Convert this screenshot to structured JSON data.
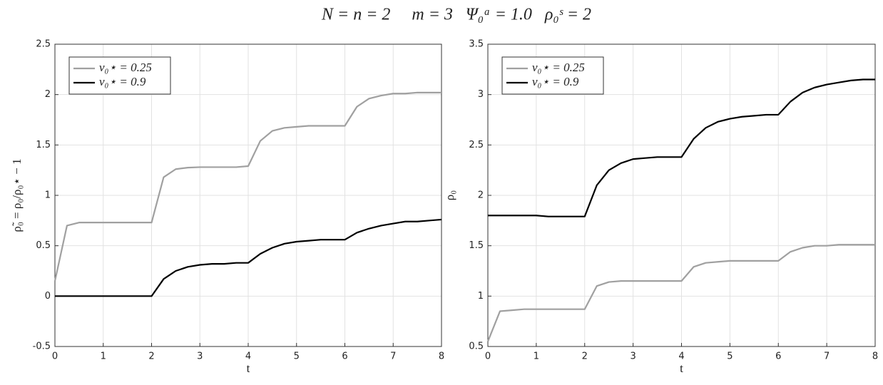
{
  "title": "N = n = 2     m = 3   Ψ₀ᵃ = 1.0   ρ₀ˢ = 2",
  "chart_data": [
    {
      "type": "line",
      "xlabel": "t",
      "ylabel": "ρ̃₀ = ρ₀/ρ₀⋆ − 1",
      "x": [
        0,
        0.25,
        0.5,
        0.75,
        1,
        1.25,
        1.5,
        1.75,
        2,
        2.25,
        2.5,
        2.75,
        3,
        3.25,
        3.5,
        3.75,
        4,
        4.25,
        4.5,
        4.75,
        5,
        5.25,
        5.5,
        5.75,
        6,
        6.25,
        6.5,
        6.75,
        7,
        7.25,
        7.5,
        7.75,
        8
      ],
      "series": [
        {
          "name": "ν₀⋆ = 0.25",
          "color": "#a0a0a0",
          "values": [
            0.15,
            0.7,
            0.73,
            0.73,
            0.73,
            0.73,
            0.73,
            0.73,
            0.73,
            1.18,
            1.26,
            1.275,
            1.28,
            1.28,
            1.28,
            1.28,
            1.29,
            1.54,
            1.64,
            1.67,
            1.68,
            1.69,
            1.69,
            1.69,
            1.69,
            1.88,
            1.96,
            1.99,
            2.01,
            2.01,
            2.02,
            2.02,
            2.02
          ]
        },
        {
          "name": "ν₀⋆ = 0.9",
          "color": "#000000",
          "values": [
            0,
            0,
            0,
            0,
            0,
            0,
            0,
            0,
            0,
            0.17,
            0.25,
            0.29,
            0.31,
            0.32,
            0.32,
            0.33,
            0.33,
            0.42,
            0.48,
            0.52,
            0.54,
            0.55,
            0.56,
            0.56,
            0.56,
            0.63,
            0.67,
            0.7,
            0.72,
            0.74,
            0.74,
            0.75,
            0.76
          ]
        }
      ],
      "xlim": [
        0,
        8
      ],
      "xticks": [
        0,
        1,
        2,
        3,
        4,
        5,
        6,
        7,
        8
      ],
      "ylim": [
        -0.5,
        2.5
      ],
      "yticks": [
        -0.5,
        0,
        0.5,
        1,
        1.5,
        2,
        2.5
      ],
      "grid": true,
      "legend": "upper-left"
    },
    {
      "type": "line",
      "xlabel": "t",
      "ylabel": "ρ₀",
      "x": [
        0,
        0.25,
        0.5,
        0.75,
        1,
        1.25,
        1.5,
        1.75,
        2,
        2.25,
        2.5,
        2.75,
        3,
        3.25,
        3.5,
        3.75,
        4,
        4.25,
        4.5,
        4.75,
        5,
        5.25,
        5.5,
        5.75,
        6,
        6.25,
        6.5,
        6.75,
        7,
        7.25,
        7.5,
        7.75,
        8
      ],
      "series": [
        {
          "name": "ν₀⋆ = 0.25",
          "color": "#a0a0a0",
          "values": [
            0.55,
            0.85,
            0.86,
            0.87,
            0.87,
            0.87,
            0.87,
            0.87,
            0.87,
            1.1,
            1.14,
            1.15,
            1.15,
            1.15,
            1.15,
            1.15,
            1.15,
            1.29,
            1.33,
            1.34,
            1.35,
            1.35,
            1.35,
            1.35,
            1.35,
            1.44,
            1.48,
            1.5,
            1.5,
            1.51,
            1.51,
            1.51,
            1.51
          ]
        },
        {
          "name": "ν₀⋆ = 0.9",
          "color": "#000000",
          "values": [
            1.8,
            1.8,
            1.8,
            1.8,
            1.8,
            1.79,
            1.79,
            1.79,
            1.79,
            2.1,
            2.25,
            2.32,
            2.36,
            2.37,
            2.38,
            2.38,
            2.38,
            2.56,
            2.67,
            2.73,
            2.76,
            2.78,
            2.79,
            2.8,
            2.8,
            2.93,
            3.02,
            3.07,
            3.1,
            3.12,
            3.14,
            3.15,
            3.15
          ]
        }
      ],
      "xlim": [
        0,
        8
      ],
      "xticks": [
        0,
        1,
        2,
        3,
        4,
        5,
        6,
        7,
        8
      ],
      "ylim": [
        0.5,
        3.5
      ],
      "yticks": [
        0.5,
        1,
        1.5,
        2,
        2.5,
        3,
        3.5
      ],
      "grid": true,
      "legend": "upper-left"
    }
  ]
}
